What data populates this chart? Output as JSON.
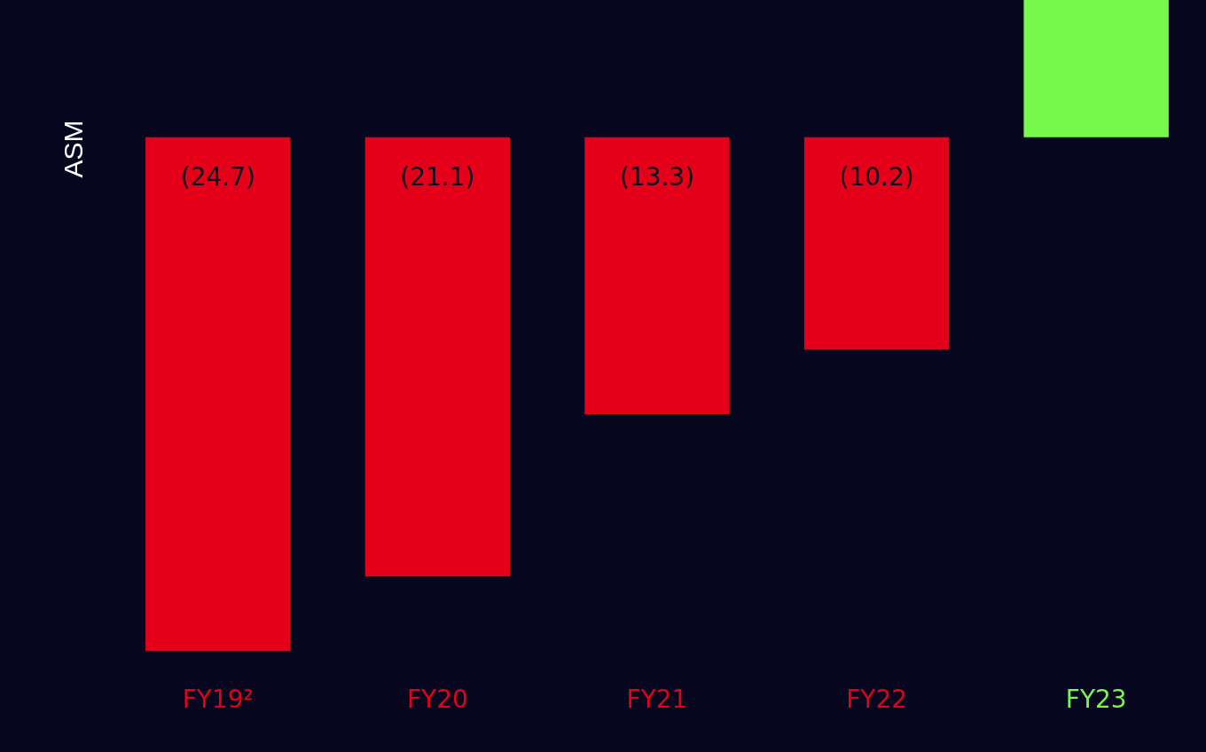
{
  "chart_data": {
    "type": "bar",
    "ylabel": "ASM",
    "categories": [
      "FY19²",
      "FY20",
      "FY21",
      "FY22",
      "FY23"
    ],
    "values": [
      -24.7,
      -21.1,
      -13.3,
      -10.2,
      6.6
    ],
    "value_labels": [
      "(24.7)",
      "(21.1)",
      "(13.3)",
      "(10.2)",
      null
    ],
    "colors": [
      "#e30018",
      "#e30018",
      "#e30018",
      "#e30018",
      "#76f94a"
    ],
    "tick_labels": "x",
    "grid": false,
    "legend": false
  }
}
